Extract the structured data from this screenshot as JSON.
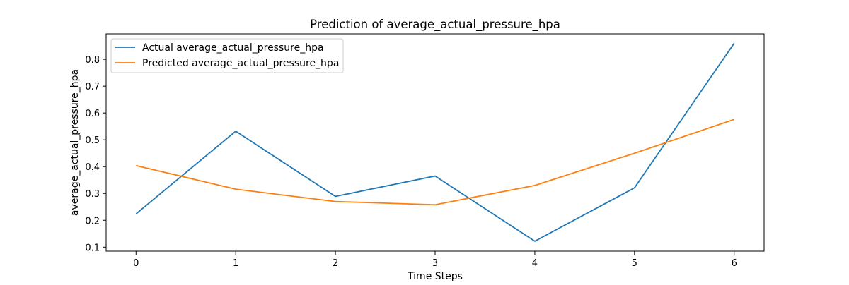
{
  "chart_data": {
    "type": "line",
    "title": "Prediction of average_actual_pressure_hpa",
    "xlabel": "Time Steps",
    "ylabel": "average_actual_pressure_hpa",
    "x": [
      0,
      1,
      2,
      3,
      4,
      5,
      6
    ],
    "xlim": [
      -0.3,
      6.3
    ],
    "ylim": [
      0.085,
      0.895
    ],
    "xticks": [
      0,
      1,
      2,
      3,
      4,
      5,
      6
    ],
    "yticks": [
      0.1,
      0.2,
      0.3,
      0.4,
      0.5,
      0.6,
      0.7,
      0.8
    ],
    "grid": false,
    "legend_position": "upper-left",
    "series": [
      {
        "name": "Actual average_actual_pressure_hpa",
        "color": "#1f77b4",
        "values": [
          0.224,
          0.532,
          0.289,
          0.365,
          0.122,
          0.321,
          0.86
        ]
      },
      {
        "name": "Predicted average_actual_pressure_hpa",
        "color": "#ff7f0e",
        "values": [
          0.404,
          0.316,
          0.27,
          0.258,
          0.33,
          0.45,
          0.576
        ]
      }
    ]
  }
}
